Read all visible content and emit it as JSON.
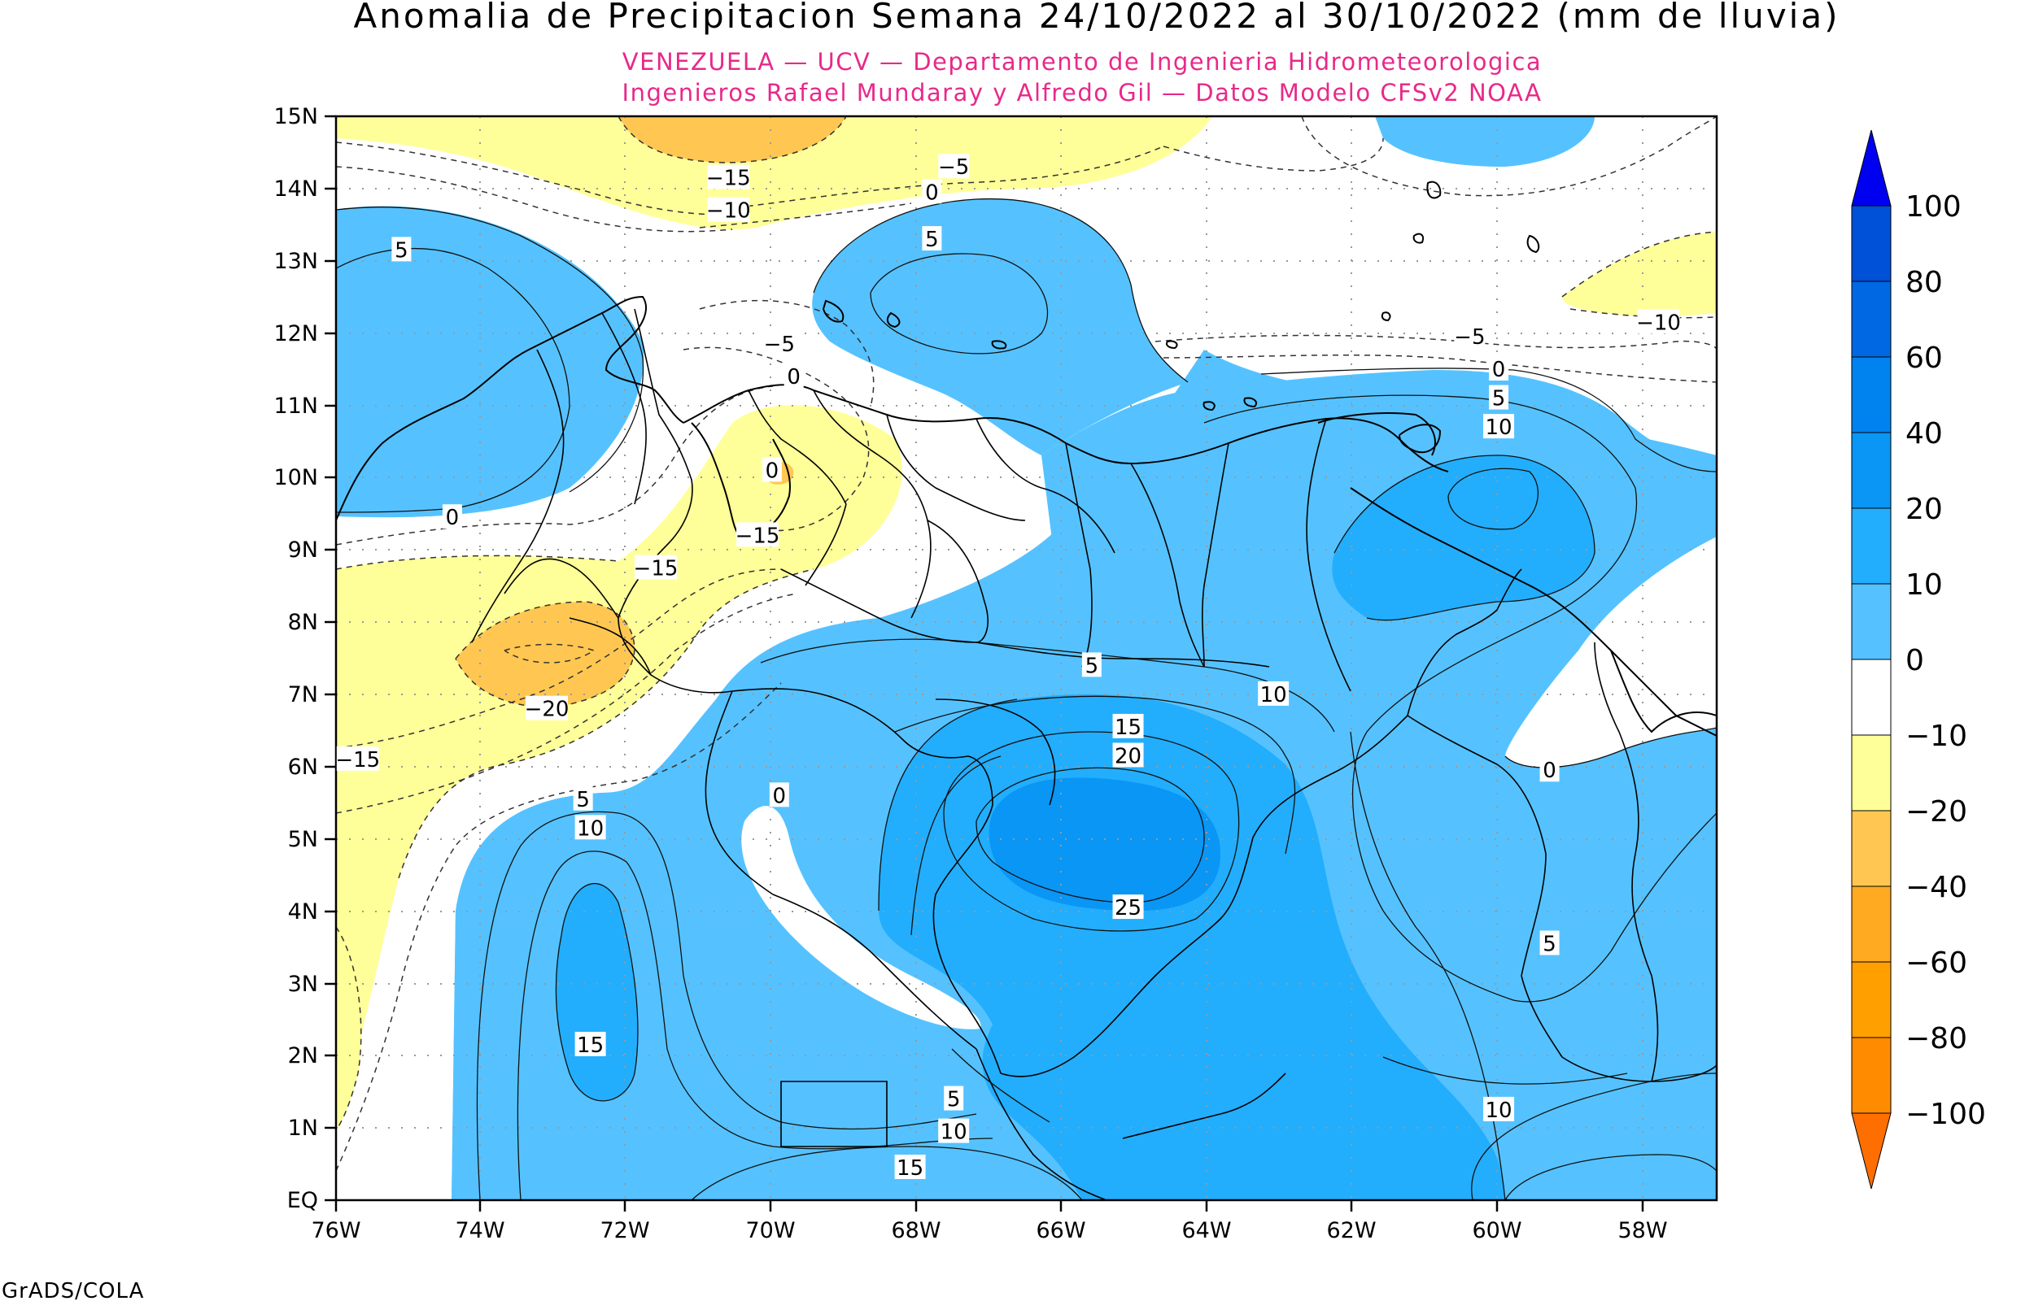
{
  "title": "Anomalia de Precipitacion Semana 24/10/2022 al 30/10/2022 (mm de lluvia)",
  "subtitle_1": "VENEZUELA — UCV — Departamento de Ingenieria Hidrometeorologica",
  "subtitle_2": "Ingenieros Rafael Mundaray y Alfredo Gil — Datos Modelo CFSv2 NOAA",
  "footer": "GrADS/COLA",
  "colors": {
    "title": "#000000",
    "subtitle": "#e8298a",
    "pos_0_10": "#55c2ff",
    "pos_10_20": "#22aefd",
    "pos_20_40": "#0a96f5",
    "pos_40_60": "#0082ef",
    "pos_60_80": "#0068e2",
    "pos_80_100": "#0050d8",
    "pos_over_100": "#0000f0",
    "neutral": "#ffffff",
    "neg_10_20": "#ffff99",
    "neg_20_40": "#ffc751",
    "neg_40_60": "#ffaa20",
    "neg_60_80": "#ffa000",
    "neg_80_100": "#ff8b00",
    "neg_under_100": "#ff6e00"
  },
  "axes": {
    "lon_ticks": [
      "76W",
      "74W",
      "72W",
      "70W",
      "68W",
      "66W",
      "64W",
      "62W",
      "60W",
      "58W"
    ],
    "lat_ticks": [
      "EQ",
      "1N",
      "2N",
      "3N",
      "4N",
      "5N",
      "6N",
      "7N",
      "8N",
      "9N",
      "10N",
      "11N",
      "12N",
      "13N",
      "14N",
      "15N"
    ],
    "lon_range": [
      -76,
      -57
    ],
    "lat_range": [
      0,
      15
    ]
  },
  "colorbar": {
    "labels": [
      "100",
      "80",
      "60",
      "40",
      "20",
      "10",
      "0",
      "−10",
      "−20",
      "−40",
      "−60",
      "−80",
      "−100"
    ]
  },
  "contour_labels": [
    {
      "text": "5",
      "lon": -75.1,
      "lat": 13.15
    },
    {
      "text": "0",
      "lon": -74.4,
      "lat": 9.45
    },
    {
      "text": "−15",
      "lon": -70.6,
      "lat": 14.15
    },
    {
      "text": "−10",
      "lon": -70.6,
      "lat": 13.7
    },
    {
      "text": "−5",
      "lon": -67.5,
      "lat": 14.3
    },
    {
      "text": "0",
      "lon": -67.8,
      "lat": 13.95
    },
    {
      "text": "5",
      "lon": -67.8,
      "lat": 13.3
    },
    {
      "text": "−5",
      "lon": -69.9,
      "lat": 11.85
    },
    {
      "text": "0",
      "lon": -69.7,
      "lat": 11.4
    },
    {
      "text": "0",
      "lon": -70.0,
      "lat": 10.1
    },
    {
      "text": "−15",
      "lon": -70.2,
      "lat": 9.2
    },
    {
      "text": "−15",
      "lon": -71.6,
      "lat": 8.75
    },
    {
      "text": "−20",
      "lon": -73.1,
      "lat": 6.8
    },
    {
      "text": "−15",
      "lon": -75.7,
      "lat": 6.1
    },
    {
      "text": "−5",
      "lon": -60.4,
      "lat": 11.95
    },
    {
      "text": "−10",
      "lon": -57.8,
      "lat": 12.15
    },
    {
      "text": "0",
      "lon": -60.0,
      "lat": 11.5
    },
    {
      "text": "5",
      "lon": -60.0,
      "lat": 11.1
    },
    {
      "text": "10",
      "lon": -60.0,
      "lat": 10.7
    },
    {
      "text": "5",
      "lon": -65.6,
      "lat": 7.4
    },
    {
      "text": "10",
      "lon": -63.1,
      "lat": 7.0
    },
    {
      "text": "15",
      "lon": -65.1,
      "lat": 6.55
    },
    {
      "text": "20",
      "lon": -65.1,
      "lat": 6.15
    },
    {
      "text": "25",
      "lon": -65.1,
      "lat": 4.05
    },
    {
      "text": "0",
      "lon": -69.9,
      "lat": 5.6
    },
    {
      "text": "5",
      "lon": -72.6,
      "lat": 5.55
    },
    {
      "text": "10",
      "lon": -72.5,
      "lat": 5.15
    },
    {
      "text": "15",
      "lon": -72.5,
      "lat": 2.15
    },
    {
      "text": "0",
      "lon": -59.3,
      "lat": 5.95
    },
    {
      "text": "5",
      "lon": -59.3,
      "lat": 3.55
    },
    {
      "text": "10",
      "lon": -60.0,
      "lat": 1.25
    },
    {
      "text": "5",
      "lon": -67.5,
      "lat": 1.4
    },
    {
      "text": "10",
      "lon": -67.5,
      "lat": 0.95
    },
    {
      "text": "15",
      "lon": -68.1,
      "lat": 0.45
    }
  ]
}
